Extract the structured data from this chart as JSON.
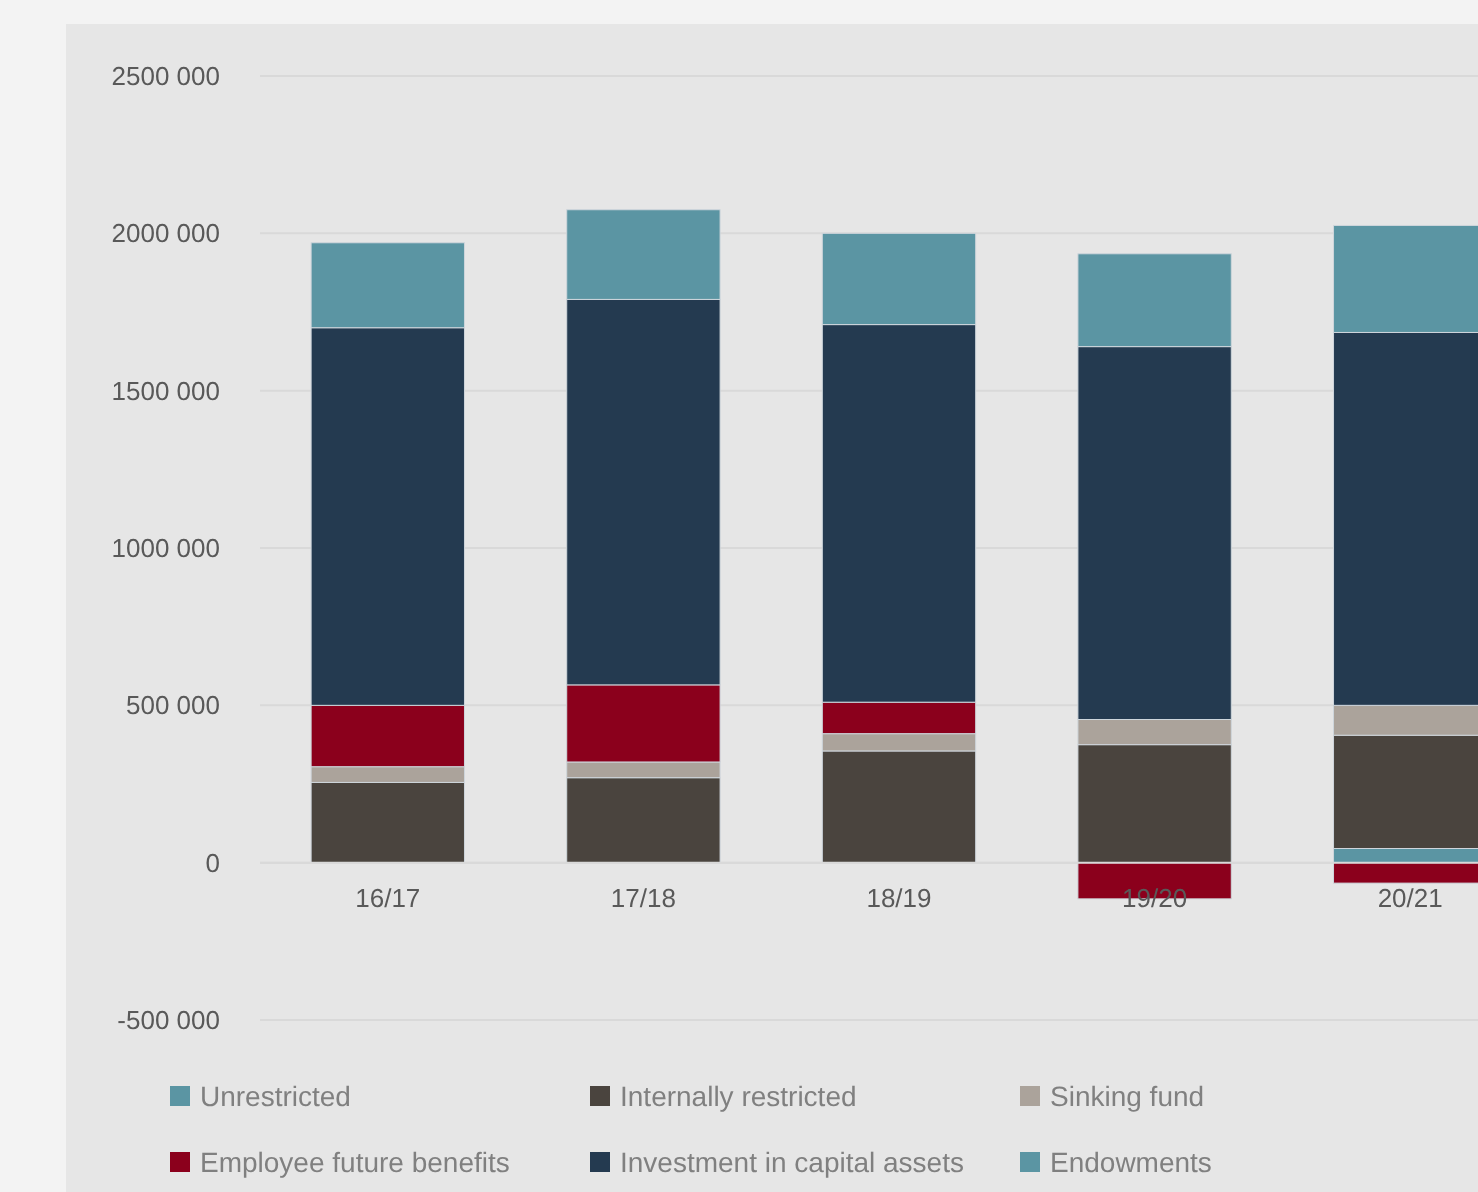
{
  "chart_data": {
    "type": "bar",
    "stacked": true,
    "categories": [
      "16/17",
      "17/18",
      "18/19",
      "19/20",
      "20/21"
    ],
    "series": [
      {
        "name": "Unrestricted",
        "color": "#5b95a3",
        "values": [
          null,
          null,
          null,
          null,
          45000
        ]
      },
      {
        "name": "Internally restricted",
        "color": "#4a443e",
        "values": [
          255000,
          270000,
          355000,
          375000,
          360000
        ]
      },
      {
        "name": "Sinking fund",
        "color": "#aba39b",
        "values": [
          50000,
          50000,
          55000,
          80000,
          95000
        ]
      },
      {
        "name": "Employee future benefits",
        "color": "#8b001c",
        "values": [
          195000,
          245000,
          100000,
          -115000,
          -65000
        ]
      },
      {
        "name": "Investment in capital assets",
        "color": "#243a50",
        "values": [
          1200000,
          1225000,
          1200000,
          1185000,
          1185000
        ]
      },
      {
        "name": "Endowments",
        "color": "#5b95a3",
        "values": [
          270000,
          285000,
          290000,
          295000,
          340000
        ]
      }
    ],
    "ylim": [
      -500000,
      2500000
    ],
    "yticks": [
      {
        "value": -500000,
        "label": "-500 000"
      },
      0,
      {
        "value": 500000,
        "label": "500 000"
      },
      {
        "value": 1000000,
        "label": "1000 000"
      },
      {
        "value": 1500000,
        "label": "1500 000"
      },
      {
        "value": 2000000,
        "label": "2000 000"
      },
      {
        "value": 2500000,
        "label": "2500 000"
      }
    ],
    "grid": "y",
    "legend": "bottom"
  }
}
